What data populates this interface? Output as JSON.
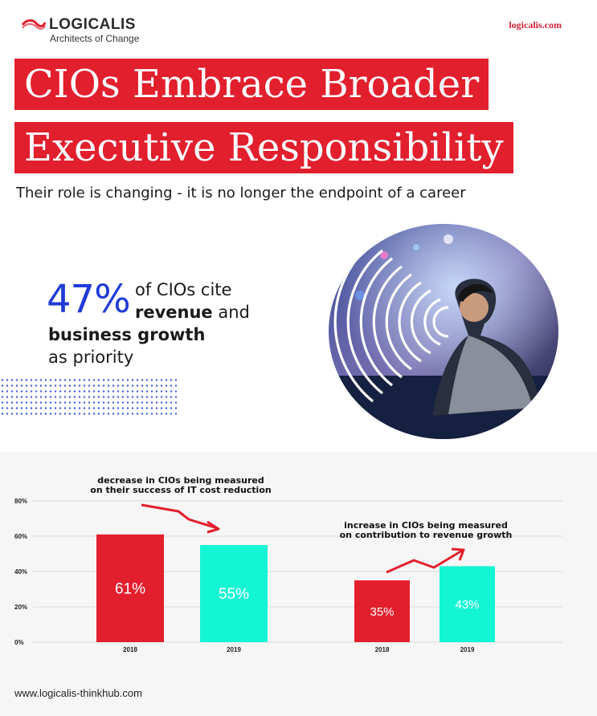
{
  "header": {
    "brand": "LOGICALIS",
    "tagline": "Architects of Change",
    "site": "logicalis.com"
  },
  "title": {
    "line1": "CIOs Embrace Broader",
    "line2": "Executive Responsibility"
  },
  "subtitle": "Their role is changing - it is no longer the endpoint of a career",
  "stat": {
    "number": "47%",
    "line1": "of CIOs cite",
    "line2_bold": "revenue",
    "line2_rest": " and",
    "line3": "business growth",
    "line4": "as priority"
  },
  "footer": "www.logicalis-thinkhub.com",
  "colors": {
    "brand_red": "#e21f2d",
    "accent_blue": "#1f3bd6",
    "bar_2018": "#e21f2d",
    "bar_2019": "#14f5d4"
  },
  "chart_data": [
    {
      "type": "bar",
      "title": "decrease in CIOs being measured on their success of IT cost reduction",
      "title_lines": [
        "decrease in CIOs being measured",
        "on their success of IT cost reduction"
      ],
      "categories": [
        "2018",
        "2019"
      ],
      "values": [
        61,
        55
      ],
      "value_labels": [
        "61%",
        "55%"
      ],
      "ylim": [
        0,
        80
      ],
      "yticks": [
        "0%",
        "20%",
        "40%",
        "60%",
        "80%"
      ],
      "trend": "down"
    },
    {
      "type": "bar",
      "title": "increase in CIOs being measured on contribution to revenue growth",
      "title_lines": [
        "increase in CIOs being measured",
        "on contribution to revenue growth"
      ],
      "categories": [
        "2018",
        "2019"
      ],
      "values": [
        35,
        43
      ],
      "value_labels": [
        "35%",
        "43%"
      ],
      "ylim": [
        0,
        80
      ],
      "trend": "up"
    }
  ]
}
